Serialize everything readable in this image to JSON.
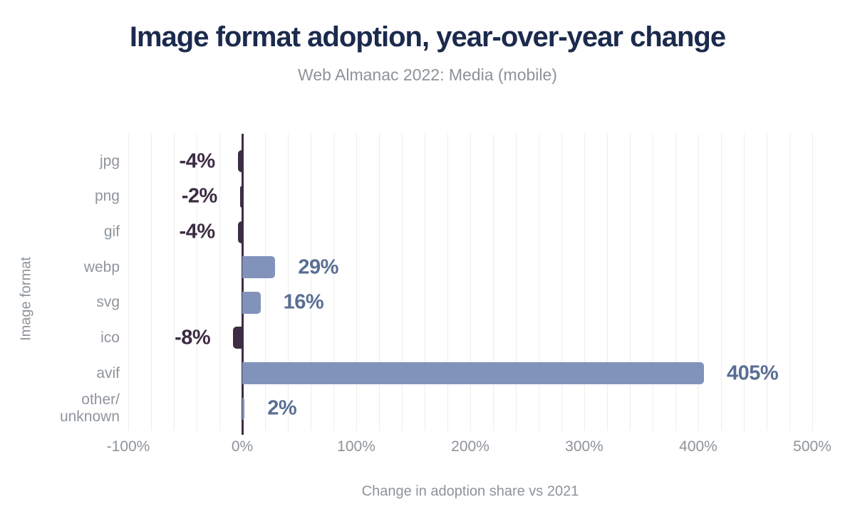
{
  "chart": {
    "title": "Image format adoption, year-over-year change",
    "subtitle": "Web Almanac 2022: Media (mobile)",
    "xlabel": "Change in adoption share vs 2021",
    "ylabel": "Image format"
  },
  "chart_data": {
    "type": "bar",
    "orientation": "horizontal",
    "title": "Image format adoption, year-over-year change",
    "subtitle": "Web Almanac 2022: Media (mobile)",
    "xlabel": "Change in adoption share vs 2021",
    "ylabel": "Image format",
    "categories": [
      "jpg",
      "png",
      "gif",
      "webp",
      "svg",
      "ico",
      "avif",
      "other/\nunknown"
    ],
    "values": [
      -4,
      -2,
      -4,
      29,
      16,
      -8,
      405,
      2
    ],
    "value_labels": [
      "-4%",
      "-2%",
      "-4%",
      "29%",
      "16%",
      "-8%",
      "405%",
      "2%"
    ],
    "xlim": [
      -100,
      500
    ],
    "xticks": [
      {
        "value": -100,
        "label": "-100%"
      },
      {
        "value": 0,
        "label": "0%"
      },
      {
        "value": 100,
        "label": "100%"
      },
      {
        "value": 200,
        "label": "200%"
      },
      {
        "value": 300,
        "label": "300%"
      },
      {
        "value": 400,
        "label": "400%"
      },
      {
        "value": 500,
        "label": "500%"
      }
    ],
    "grid": "vertical minor gridlines every 20%, zero axis emphasized",
    "grid_minor_step": 20,
    "legend": "none",
    "colors": {
      "positive_bar": "#8193ba",
      "positive_label": "#5a6e94",
      "negative_bar": "#3c2d44",
      "negative_label": "#3c2b43",
      "zero_axis": "#3c2d44",
      "gridline": "#ededed",
      "title_text": "#1b2a4d",
      "muted_text": "#8d9399"
    }
  }
}
